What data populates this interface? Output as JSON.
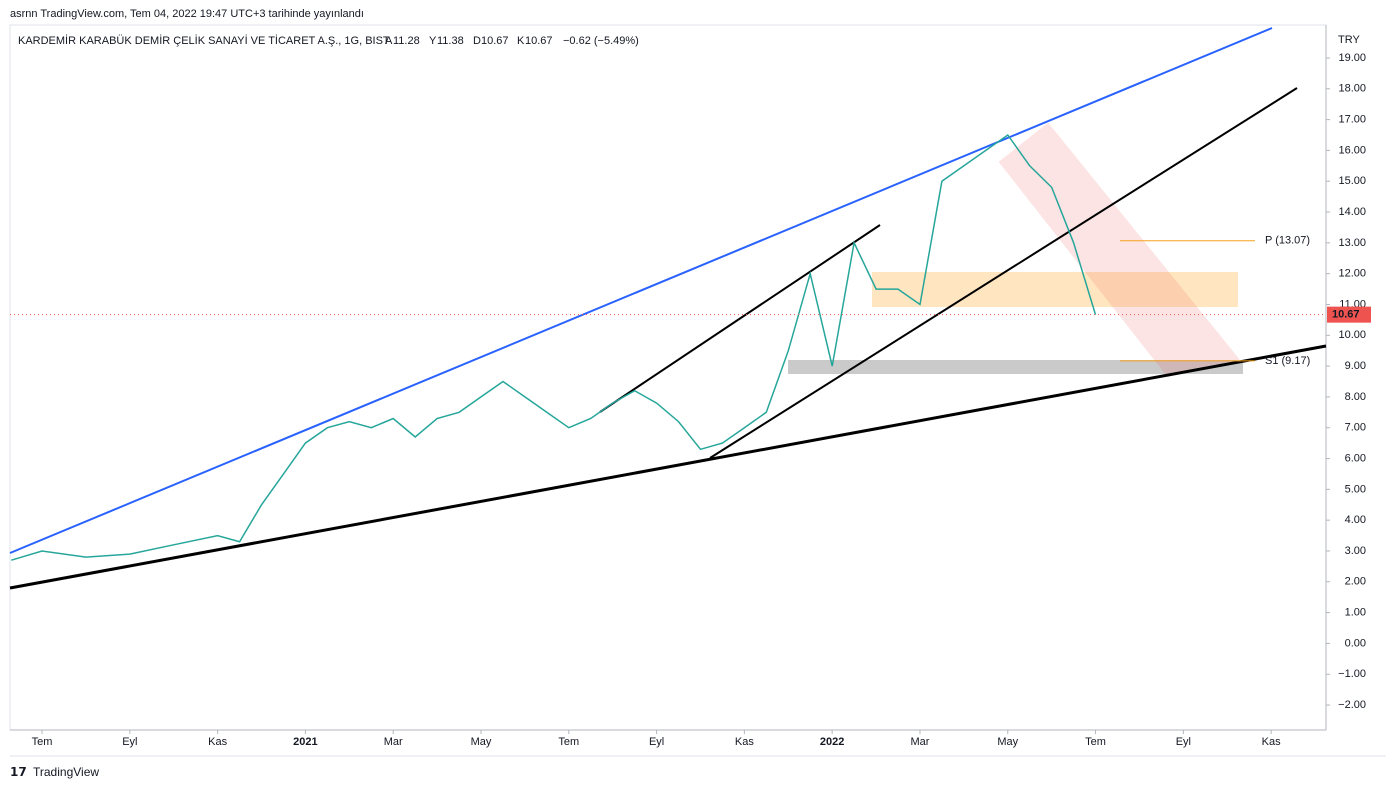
{
  "header": {
    "published": "asrnn TradingView.com, Tem 04, 2022 19:47 UTC+3 tarihinde yayınlandı"
  },
  "footer": {
    "brand": "TradingView"
  },
  "chart_data": {
    "type": "line",
    "title": "KARDEMİR KARABÜK DEMİR ÇELİK SANAYİ VE TİCARET A.Ş., 1G, BIST",
    "ohlc": [
      {
        "key": "A",
        "text": "11.28"
      },
      {
        "key": "Y",
        "text": "11.38"
      },
      {
        "key": "D",
        "text": "10.67"
      },
      {
        "key": "K",
        "text": "10.67"
      }
    ],
    "change": "−0.62 (−5.49%)",
    "currency": "TRY",
    "color": "#26a69a",
    "x": [
      -0.7,
      0,
      1,
      2,
      3,
      4,
      4.5,
      5,
      5.5,
      6,
      6.5,
      7,
      7.5,
      8,
      8.5,
      9,
      9.5,
      10,
      10.5,
      11,
      11.5,
      12,
      12.5,
      13,
      13.5,
      14,
      14.5,
      15,
      15.5,
      16,
      16.5,
      17,
      17.5,
      18,
      18.5,
      19,
      19.5,
      20,
      20.5,
      21,
      21.5,
      22,
      22.5,
      23,
      23.5,
      24
    ],
    "values": [
      2.7,
      3.0,
      2.8,
      2.9,
      3.2,
      3.5,
      3.3,
      4.5,
      5.5,
      6.5,
      7.0,
      7.2,
      7.0,
      7.3,
      6.7,
      7.3,
      7.5,
      8.0,
      8.5,
      8.0,
      7.5,
      7.0,
      7.3,
      7.8,
      8.2,
      7.8,
      7.2,
      6.3,
      6.5,
      7.0,
      7.5,
      9.5,
      12.0,
      9.0,
      13.0,
      11.5,
      11.5,
      11.0,
      15.0,
      15.5,
      16.0,
      16.5,
      15.5,
      14.8,
      13.0,
      10.67
    ],
    "last_price": 10.67,
    "pivots": [
      {
        "label": "P (13.07)",
        "value": 13.07
      },
      {
        "label": "S1 (9.17)",
        "value": 9.17
      }
    ],
    "xlim": [
      -0.73,
      29.25
    ],
    "xticks": [
      {
        "value": 0,
        "label": "Tem"
      },
      {
        "value": 2,
        "label": "Eyl"
      },
      {
        "value": 4,
        "label": "Kas"
      },
      {
        "value": 6,
        "label": "2021"
      },
      {
        "value": 8,
        "label": "Mar"
      },
      {
        "value": 10,
        "label": "May"
      },
      {
        "value": 12,
        "label": "Tem"
      },
      {
        "value": 14,
        "label": "Eyl"
      },
      {
        "value": 16,
        "label": "Kas"
      },
      {
        "value": 18,
        "label": "2022"
      },
      {
        "value": 20,
        "label": "Mar"
      },
      {
        "value": 22,
        "label": "May"
      },
      {
        "value": 24,
        "label": "Tem"
      },
      {
        "value": 26,
        "label": "Eyl"
      },
      {
        "value": 28,
        "label": "Kas"
      }
    ],
    "ylim": [
      -2.81,
      20.07
    ],
    "yticks": [
      {
        "value": 19,
        "label": "19.00"
      },
      {
        "value": 18,
        "label": "18.00"
      },
      {
        "value": 17,
        "label": "17.00"
      },
      {
        "value": 16,
        "label": "16.00"
      },
      {
        "value": 15,
        "label": "15.00"
      },
      {
        "value": 14,
        "label": "14.00"
      },
      {
        "value": 13,
        "label": "13.00"
      },
      {
        "value": 12,
        "label": "12.00"
      },
      {
        "value": 11,
        "label": "11.00"
      },
      {
        "value": 10,
        "label": "10.00"
      },
      {
        "value": 9,
        "label": "9.00"
      },
      {
        "value": 8,
        "label": "8.00"
      },
      {
        "value": 7,
        "label": "7.00"
      },
      {
        "value": 6,
        "label": "6.00"
      },
      {
        "value": 5,
        "label": "5.00"
      },
      {
        "value": 4,
        "label": "4.00"
      },
      {
        "value": 3,
        "label": "3.00"
      },
      {
        "value": 2,
        "label": "2.00"
      },
      {
        "value": 1,
        "label": "1.00"
      },
      {
        "value": 0,
        "label": "0.00"
      },
      {
        "value": -1,
        "label": "−1.00"
      },
      {
        "value": -2,
        "label": "−2.00"
      }
    ]
  }
}
